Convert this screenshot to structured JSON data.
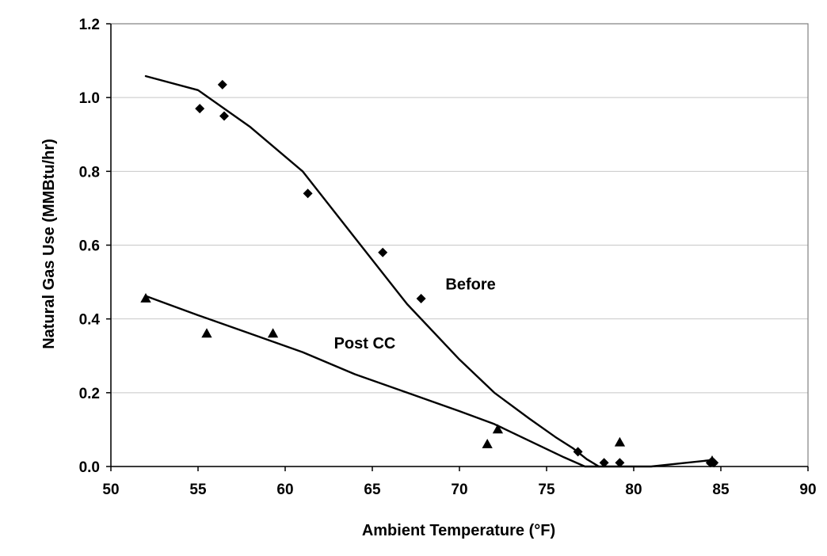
{
  "chart_data": {
    "type": "scatter",
    "title": "",
    "xlabel": "Ambient Temperature (°F)",
    "ylabel": "Natural Gas Use (MMBtu/hr)",
    "xlim": [
      50,
      90
    ],
    "ylim": [
      0,
      1.2
    ],
    "x_ticks": [
      "50",
      "55",
      "60",
      "65",
      "70",
      "75",
      "80",
      "85",
      "90"
    ],
    "y_ticks": [
      "0.0",
      "0.2",
      "0.4",
      "0.6",
      "0.8",
      "1.0",
      "1.2"
    ],
    "grid": "horizontal",
    "legend": "none",
    "series": [
      {
        "name": "Before",
        "marker": "diamond",
        "points": [
          [
            55.1,
            0.97
          ],
          [
            56.4,
            1.035
          ],
          [
            56.5,
            0.95
          ],
          [
            61.3,
            0.74
          ],
          [
            65.6,
            0.58
          ],
          [
            67.8,
            0.455
          ],
          [
            76.8,
            0.04
          ],
          [
            78.3,
            0.01
          ],
          [
            79.2,
            0.01
          ],
          [
            84.4,
            0.01
          ],
          [
            84.6,
            0.01
          ]
        ],
        "trend": [
          [
            52,
            1.058
          ],
          [
            55,
            1.02
          ],
          [
            58,
            0.92
          ],
          [
            61,
            0.8
          ],
          [
            64,
            0.62
          ],
          [
            67,
            0.44
          ],
          [
            70,
            0.29
          ],
          [
            72,
            0.2
          ],
          [
            74,
            0.13
          ],
          [
            75.5,
            0.08
          ],
          [
            76.5,
            0.05
          ],
          [
            77.3,
            0.02
          ],
          [
            78,
            0.0
          ]
        ]
      },
      {
        "name": "Post CC",
        "marker": "triangle",
        "points": [
          [
            52,
            0.455
          ],
          [
            55.5,
            0.36
          ],
          [
            59.3,
            0.36
          ],
          [
            71.6,
            0.06
          ],
          [
            72.2,
            0.1
          ],
          [
            79.2,
            0.065
          ],
          [
            84.5,
            0.015
          ]
        ],
        "trend": [
          [
            52,
            0.462
          ],
          [
            55,
            0.41
          ],
          [
            58,
            0.36
          ],
          [
            61,
            0.31
          ],
          [
            64,
            0.25
          ],
          [
            67,
            0.2
          ],
          [
            70,
            0.15
          ],
          [
            72,
            0.115
          ],
          [
            74,
            0.07
          ],
          [
            76,
            0.025
          ],
          [
            77.2,
            0.0
          ],
          [
            78.5,
            0.0
          ],
          [
            81,
            0.0
          ],
          [
            83,
            0.01
          ],
          [
            84.6,
            0.018
          ]
        ]
      }
    ],
    "annotations": [
      {
        "text": "Before",
        "x": 69.2,
        "y": 0.48
      },
      {
        "text": "Post CC",
        "x": 62.8,
        "y": 0.32
      }
    ],
    "colors": {
      "marker": "#000000",
      "line": "#000000",
      "grid": "#c8c8c8"
    }
  }
}
